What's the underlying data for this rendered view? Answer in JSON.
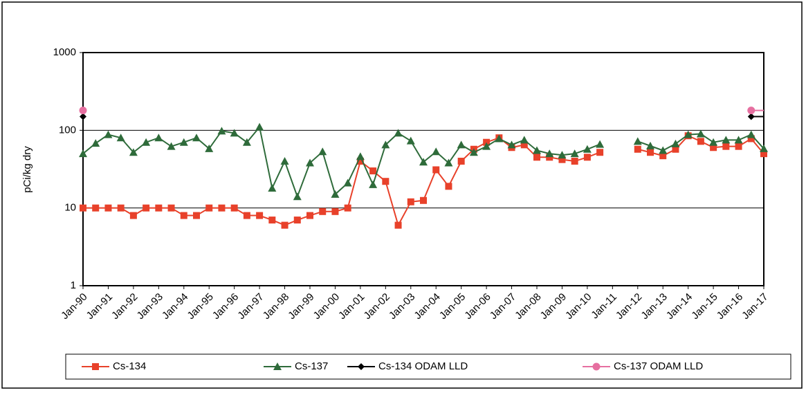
{
  "chart_data": {
    "type": "line",
    "y_label": "pCi/kg dry",
    "log_scale": true,
    "grid": true,
    "legend": "bottom",
    "categories": [
      "Jan-90",
      null,
      "Jan-91",
      null,
      "Jan-92",
      null,
      "Jan-93",
      null,
      "Jan-94",
      null,
      "Jan-95",
      null,
      "Jan-96",
      null,
      "Jan-97",
      null,
      "Jan-98",
      null,
      "Jan-99",
      null,
      "Jan-00",
      null,
      "Jan-01",
      null,
      "Jan-02",
      null,
      "Jan-03",
      null,
      "Jan-04",
      null,
      "Jan-05",
      null,
      "Jan-06",
      null,
      "Jan-07",
      null,
      "Jan-08",
      null,
      "Jan-09",
      null,
      "Jan-10",
      null,
      "Jan-11",
      null,
      "Jan-12",
      null,
      "Jan-13",
      null,
      "Jan-14",
      null,
      "Jan-15",
      null,
      "Jan-16",
      null,
      "Jan-17"
    ],
    "ylim": [
      1,
      1000
    ],
    "yticks": [
      1,
      10,
      100,
      1000
    ],
    "series": [
      {
        "name": "Cs-134",
        "color": "#e8412a",
        "marker": "square",
        "values": [
          10,
          10,
          10,
          10,
          8,
          10,
          10,
          10,
          8,
          8,
          10,
          10,
          10,
          8,
          8,
          7,
          6,
          7,
          8,
          9,
          9,
          10,
          40,
          30,
          22,
          6,
          12,
          12.5,
          31,
          19,
          40,
          57,
          70,
          80,
          60,
          65,
          45,
          45,
          42,
          40,
          45,
          52,
          null,
          null,
          57,
          52,
          47,
          57,
          85,
          72,
          60,
          62,
          62,
          78,
          50
        ]
      },
      {
        "name": "Cs-137",
        "color": "#2e6b3a",
        "marker": "triangle",
        "values": [
          50,
          68,
          88,
          80,
          52,
          70,
          80,
          62,
          70,
          80,
          58,
          98,
          92,
          70,
          110,
          18,
          40,
          14,
          38,
          53,
          15,
          21,
          46,
          20,
          65,
          92,
          73,
          39,
          53,
          38,
          65,
          52,
          62,
          78,
          65,
          75,
          55,
          50,
          48,
          50,
          57,
          66,
          null,
          null,
          72,
          63,
          55,
          67,
          88,
          90,
          70,
          75,
          75,
          88,
          58
        ]
      },
      {
        "name": "Cs-134 ODAM LLD",
        "color": "#000000",
        "marker": "diamond",
        "values": [
          150,
          null,
          null,
          null,
          null,
          null,
          null,
          null,
          null,
          null,
          null,
          null,
          null,
          null,
          null,
          null,
          null,
          null,
          null,
          null,
          null,
          null,
          null,
          null,
          null,
          null,
          null,
          null,
          null,
          null,
          null,
          null,
          null,
          null,
          null,
          null,
          null,
          null,
          null,
          null,
          null,
          null,
          null,
          null,
          null,
          null,
          null,
          null,
          null,
          null,
          null,
          null,
          null,
          150,
          null
        ]
      },
      {
        "name": "Cs-137 ODAM LLD",
        "color": "#e66fa0",
        "marker": "circle",
        "values": [
          180,
          null,
          null,
          null,
          null,
          null,
          null,
          null,
          null,
          null,
          null,
          null,
          null,
          null,
          null,
          null,
          null,
          null,
          null,
          null,
          null,
          null,
          null,
          null,
          null,
          null,
          null,
          null,
          null,
          null,
          null,
          null,
          null,
          null,
          null,
          null,
          null,
          null,
          null,
          null,
          null,
          null,
          null,
          null,
          null,
          null,
          null,
          null,
          null,
          null,
          null,
          null,
          null,
          180,
          null
        ]
      }
    ]
  }
}
